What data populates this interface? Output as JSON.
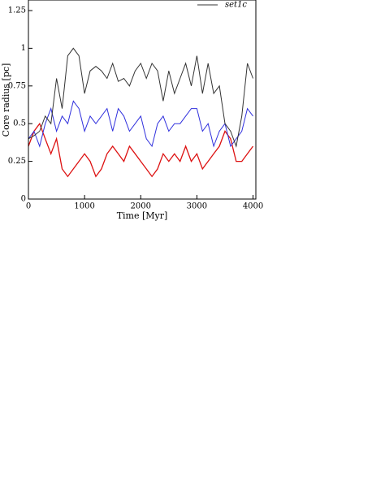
{
  "chart_data": {
    "type": "line",
    "xlabel": "Time [Myr]",
    "ylabel": "Core radius [pc]",
    "x": [
      0,
      100,
      200,
      300,
      400,
      500,
      600,
      700,
      800,
      900,
      1000,
      1100,
      1200,
      1300,
      1400,
      1500,
      1600,
      1700,
      1800,
      1900,
      2000,
      2100,
      2200,
      2300,
      2400,
      2500,
      2600,
      2700,
      2800,
      2900,
      3000,
      3100,
      3200,
      3300,
      3400,
      3500,
      3600,
      3700,
      3800,
      3900,
      4000
    ],
    "series": [
      {
        "name": "set1c",
        "color": "#333333",
        "values": [
          0.4,
          0.42,
          0.45,
          0.55,
          0.5,
          0.8,
          0.6,
          0.95,
          1.0,
          0.95,
          0.7,
          0.85,
          0.88,
          0.85,
          0.8,
          0.9,
          0.78,
          0.8,
          0.75,
          0.85,
          0.9,
          0.8,
          0.9,
          0.85,
          0.65,
          0.85,
          0.7,
          0.8,
          0.9,
          0.75,
          0.95,
          0.7,
          0.9,
          0.7,
          0.75,
          0.5,
          0.45,
          0.35,
          0.55,
          0.9,
          0.8
        ]
      },
      {
        "color": "#3030dd",
        "values": [
          0.4,
          0.45,
          0.35,
          0.5,
          0.6,
          0.45,
          0.55,
          0.5,
          0.65,
          0.6,
          0.45,
          0.55,
          0.5,
          0.55,
          0.6,
          0.45,
          0.6,
          0.55,
          0.45,
          0.5,
          0.55,
          0.4,
          0.35,
          0.5,
          0.55,
          0.45,
          0.5,
          0.5,
          0.55,
          0.6,
          0.6,
          0.45,
          0.5,
          0.35,
          0.45,
          0.5,
          0.35,
          0.4,
          0.45,
          0.6,
          0.55
        ]
      },
      {
        "color": "#dd1111",
        "values": [
          0.35,
          0.45,
          0.5,
          0.4,
          0.3,
          0.4,
          0.2,
          0.15,
          0.2,
          0.25,
          0.3,
          0.25,
          0.15,
          0.2,
          0.3,
          0.35,
          0.3,
          0.25,
          0.35,
          0.3,
          0.25,
          0.2,
          0.15,
          0.2,
          0.3,
          0.25,
          0.3,
          0.25,
          0.35,
          0.25,
          0.3,
          0.2,
          0.25,
          0.3,
          0.35,
          0.45,
          0.4,
          0.25,
          0.25,
          0.3,
          0.35
        ]
      }
    ],
    "xlim": [
      0,
      4050
    ],
    "xticks": [
      0,
      1000,
      2000,
      3000,
      4000
    ],
    "ylim": [
      0,
      1.32
    ],
    "yticks": [
      0,
      0.25,
      0.5,
      0.75,
      1,
      1.25
    ]
  }
}
